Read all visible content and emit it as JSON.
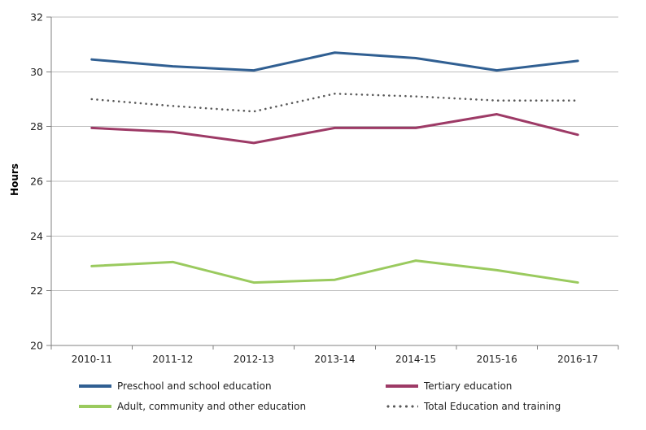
{
  "chart_data": {
    "type": "line",
    "title": "",
    "xlabel": "",
    "ylabel": "Hours",
    "ylim": [
      20,
      32
    ],
    "ytick_step": 2,
    "grid": "horizontal gridlines on",
    "legend_position": "bottom, two columns",
    "categories": [
      "2010-11",
      "2011-12",
      "2012-13",
      "2013-14",
      "2014-15",
      "2015-16",
      "2016-17"
    ],
    "series": [
      {
        "name": "Preschool and school education",
        "color": "#305F92",
        "line_style": "solid",
        "values": [
          30.45,
          30.2,
          30.05,
          30.7,
          30.5,
          30.05,
          30.4
        ]
      },
      {
        "name": "Tertiary education",
        "color": "#9D3A66",
        "line_style": "solid",
        "values": [
          27.95,
          27.8,
          27.4,
          27.95,
          27.95,
          28.45,
          27.7
        ]
      },
      {
        "name": "Adult, community and other education",
        "color": "#9ACA5E",
        "line_style": "solid",
        "values": [
          22.9,
          23.05,
          22.3,
          22.4,
          23.1,
          22.75,
          22.3
        ]
      },
      {
        "name": "Total Education and training",
        "color": "#595959",
        "line_style": "dotted",
        "values": [
          29.0,
          28.75,
          28.55,
          29.2,
          29.1,
          28.95,
          28.95
        ]
      }
    ],
    "colors": {
      "axis": "#808080",
      "grid": "#BFBFBF",
      "tick_text": "#1f1f1f",
      "background": "#FFFFFF"
    }
  }
}
